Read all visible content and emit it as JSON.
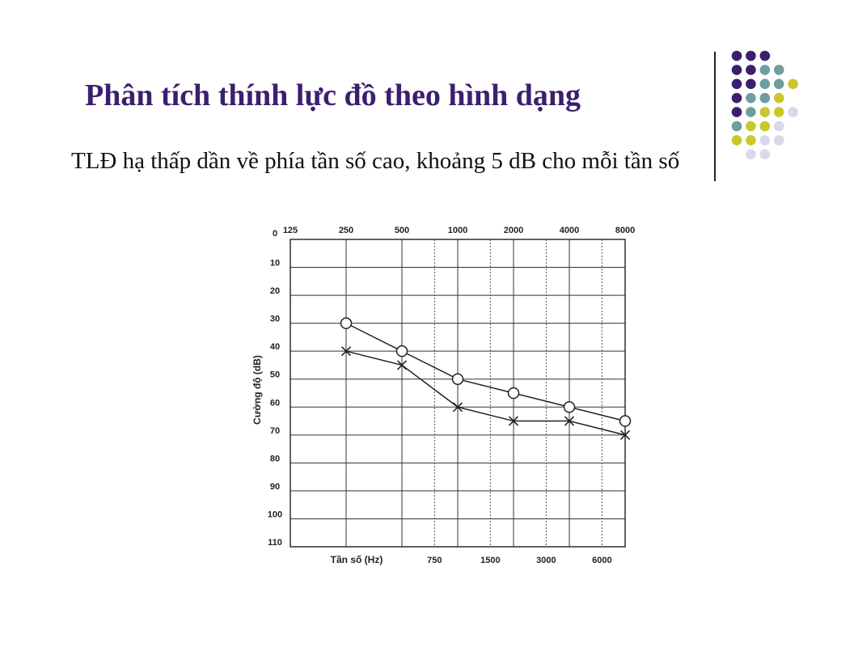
{
  "slide": {
    "title": "Phân tích thính lực đồ theo hình dạng",
    "bullet": "TLĐ hạ thấp dần về phía tần số cao, khoảng 5 dB cho mỗi tần số"
  },
  "decoration": {
    "colors": {
      "purple": "#3b1f6e",
      "teal": "#6e9e9e",
      "yellow": "#c8c82a",
      "lavender": "#d8d8ea"
    }
  },
  "chart_data": {
    "type": "line",
    "xlabel": "Tần số (Hz)",
    "ylabel": "Cường độ (dB)",
    "x_top_ticks": [
      "125",
      "250",
      "500",
      "1000",
      "2000",
      "4000",
      "8000"
    ],
    "x_bottom_ticks": [
      "750",
      "1500",
      "3000",
      "6000"
    ],
    "y_ticks": [
      0,
      10,
      20,
      30,
      40,
      50,
      60,
      70,
      80,
      90,
      100,
      110
    ],
    "ylim": [
      0,
      110
    ],
    "grid": true,
    "series": [
      {
        "marker": "circle",
        "x": [
          "250",
          "500",
          "1000",
          "2000",
          "4000",
          "8000"
        ],
        "values": [
          30,
          40,
          50,
          55,
          60,
          65
        ]
      },
      {
        "marker": "cross",
        "x": [
          "250",
          "500",
          "1000",
          "2000",
          "4000",
          "8000"
        ],
        "values": [
          40,
          45,
          60,
          65,
          65,
          70
        ]
      }
    ]
  }
}
